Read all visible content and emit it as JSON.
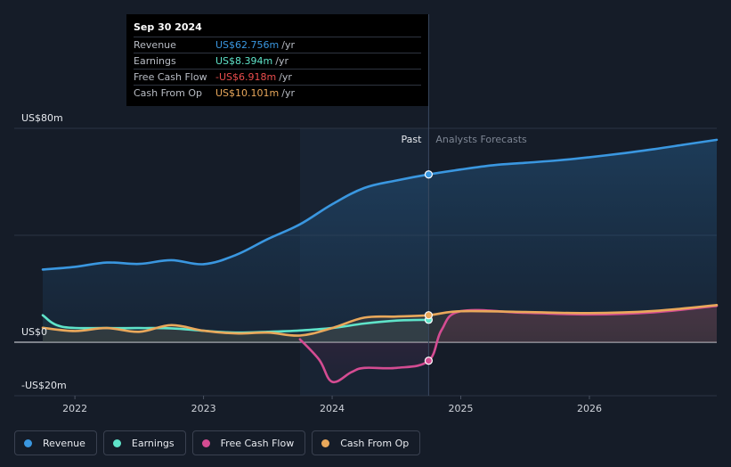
{
  "chart_data": {
    "type": "line",
    "title": "",
    "x_axis": {
      "ticks": [
        "2022",
        "2023",
        "2024",
        "2025",
        "2026"
      ],
      "range": [
        2021.7,
        2026.99
      ]
    },
    "y_axis": {
      "labels": [
        "US$80m",
        "US$0",
        "-US$20m"
      ],
      "range": [
        -20,
        80
      ],
      "unit": "US$m"
    },
    "divider": {
      "at": 2024.75,
      "past_label": "Past",
      "forecast_label": "Analysts Forecasts"
    },
    "series": [
      {
        "name": "Revenue",
        "color": "#3a97e0",
        "points": [
          [
            2021.75,
            27.2
          ],
          [
            2022.0,
            28.2
          ],
          [
            2022.25,
            29.8
          ],
          [
            2022.5,
            29.3
          ],
          [
            2022.75,
            30.7
          ],
          [
            2023.0,
            29.2
          ],
          [
            2023.25,
            32.6
          ],
          [
            2023.5,
            38.6
          ],
          [
            2023.75,
            44.1
          ],
          [
            2024.0,
            51.6
          ],
          [
            2024.25,
            57.7
          ],
          [
            2024.5,
            60.5
          ],
          [
            2024.75,
            62.756
          ],
          [
            2025.0,
            64.6
          ],
          [
            2025.25,
            66.2
          ],
          [
            2025.5,
            67.1
          ],
          [
            2025.75,
            68.0
          ],
          [
            2026.0,
            69.2
          ],
          [
            2026.25,
            70.6
          ],
          [
            2026.5,
            72.2
          ],
          [
            2026.75,
            74.0
          ],
          [
            2026.99,
            75.7
          ]
        ]
      },
      {
        "name": "Earnings",
        "color": "#5fe3c9",
        "points": [
          [
            2021.75,
            10.1
          ],
          [
            2021.9,
            5.8
          ],
          [
            2022.25,
            5.3
          ],
          [
            2022.5,
            5.3
          ],
          [
            2022.75,
            5.2
          ],
          [
            2023.0,
            4.3
          ],
          [
            2023.25,
            3.6
          ],
          [
            2023.5,
            3.9
          ],
          [
            2023.75,
            4.4
          ],
          [
            2024.0,
            5.3
          ],
          [
            2024.25,
            7.0
          ],
          [
            2024.5,
            8.1
          ],
          [
            2024.75,
            8.394
          ]
        ]
      },
      {
        "name": "Free Cash Flow",
        "color": "#d44c92",
        "points": [
          [
            2023.75,
            1.1
          ],
          [
            2023.9,
            -6.6
          ],
          [
            2024.0,
            -14.8
          ],
          [
            2024.15,
            -11.2
          ],
          [
            2024.25,
            -9.6
          ],
          [
            2024.5,
            -9.6
          ],
          [
            2024.75,
            -6.918
          ],
          [
            2024.85,
            4.5
          ],
          [
            2025.0,
            11.6
          ],
          [
            2025.5,
            11.0
          ],
          [
            2026.0,
            10.4
          ],
          [
            2026.5,
            11.2
          ],
          [
            2026.99,
            13.6
          ]
        ]
      },
      {
        "name": "Cash From Op",
        "color": "#e9a85b",
        "points": [
          [
            2021.75,
            5.4
          ],
          [
            2022.0,
            4.2
          ],
          [
            2022.25,
            5.3
          ],
          [
            2022.5,
            3.9
          ],
          [
            2022.75,
            6.4
          ],
          [
            2023.0,
            4.3
          ],
          [
            2023.25,
            3.3
          ],
          [
            2023.5,
            3.6
          ],
          [
            2023.75,
            2.5
          ],
          [
            2024.0,
            5.3
          ],
          [
            2024.25,
            9.2
          ],
          [
            2024.5,
            9.6
          ],
          [
            2024.75,
            10.101
          ],
          [
            2025.0,
            11.6
          ],
          [
            2025.5,
            11.3
          ],
          [
            2026.0,
            10.9
          ],
          [
            2026.5,
            11.7
          ],
          [
            2026.99,
            13.9
          ]
        ]
      }
    ],
    "tooltip": {
      "date": "Sep 30 2024",
      "unit": "/yr",
      "rows": [
        {
          "label": "Revenue",
          "value": "US$62.756m",
          "color": "#3a97e0"
        },
        {
          "label": "Earnings",
          "value": "US$8.394m",
          "color": "#5fe3c9"
        },
        {
          "label": "Free Cash Flow",
          "value": "-US$6.918m",
          "color": "#ea4d4d"
        },
        {
          "label": "Cash From Op",
          "value": "US$10.101m",
          "color": "#e9a85b"
        }
      ]
    },
    "legend": [
      {
        "label": "Revenue",
        "color": "#3a97e0"
      },
      {
        "label": "Earnings",
        "color": "#5fe3c9"
      },
      {
        "label": "Free Cash Flow",
        "color": "#d44c92"
      },
      {
        "label": "Cash From Op",
        "color": "#e9a85b"
      }
    ]
  }
}
